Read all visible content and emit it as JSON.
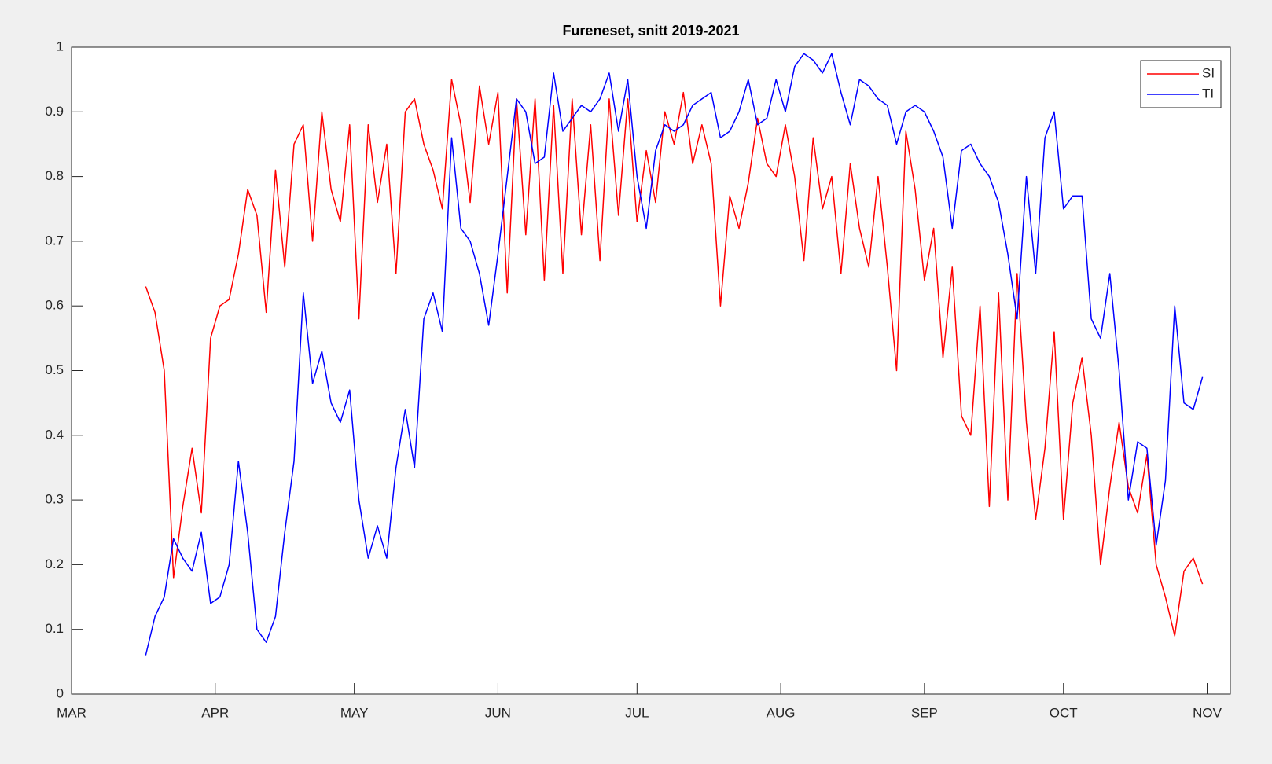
{
  "chart_data": {
    "type": "line",
    "title": "Fureneset, snitt 2019-2021",
    "x": [
      16,
      18,
      20,
      22,
      24,
      26,
      28,
      30,
      32,
      34,
      36,
      38,
      40,
      42,
      44,
      46,
      48,
      50,
      52,
      54,
      56,
      58,
      60,
      62,
      64,
      66,
      68,
      70,
      72,
      74,
      76,
      78,
      80,
      82,
      84,
      86,
      88,
      90,
      92,
      94,
      96,
      98,
      100,
      102,
      104,
      106,
      108,
      110,
      112,
      114,
      116,
      118,
      120,
      122,
      124,
      126,
      128,
      130,
      132,
      134,
      136,
      138,
      140,
      142,
      144,
      146,
      148,
      150,
      152,
      154,
      156,
      158,
      160,
      162,
      164,
      166,
      168,
      170,
      172,
      174,
      176,
      178,
      180,
      182,
      184,
      186,
      188,
      190,
      192,
      194,
      196,
      198,
      200,
      202,
      204,
      206,
      208,
      210,
      212,
      214,
      216,
      218,
      220,
      222,
      224,
      226,
      228,
      230,
      232,
      234,
      236,
      238,
      240,
      242,
      244
    ],
    "series": [
      {
        "name": "SI",
        "color": "#ff0000",
        "values": [
          0.63,
          0.59,
          0.5,
          0.18,
          0.29,
          0.38,
          0.28,
          0.55,
          0.6,
          0.61,
          0.68,
          0.78,
          0.74,
          0.59,
          0.81,
          0.66,
          0.85,
          0.88,
          0.7,
          0.9,
          0.78,
          0.73,
          0.88,
          0.58,
          0.88,
          0.76,
          0.85,
          0.65,
          0.9,
          0.92,
          0.85,
          0.81,
          0.75,
          0.95,
          0.88,
          0.76,
          0.94,
          0.85,
          0.93,
          0.62,
          0.92,
          0.71,
          0.92,
          0.64,
          0.91,
          0.65,
          0.92,
          0.71,
          0.88,
          0.67,
          0.92,
          0.74,
          0.92,
          0.73,
          0.84,
          0.76,
          0.9,
          0.85,
          0.93,
          0.82,
          0.88,
          0.82,
          0.6,
          0.77,
          0.72,
          0.79,
          0.89,
          0.82,
          0.8,
          0.88,
          0.8,
          0.67,
          0.86,
          0.75,
          0.8,
          0.65,
          0.82,
          0.72,
          0.66,
          0.8,
          0.66,
          0.5,
          0.87,
          0.78,
          0.64,
          0.72,
          0.52,
          0.66,
          0.43,
          0.4,
          0.6,
          0.29,
          0.62,
          0.3,
          0.65,
          0.42,
          0.27,
          0.38,
          0.56,
          0.27,
          0.45,
          0.52,
          0.4,
          0.2,
          0.32,
          0.42,
          0.32,
          0.28,
          0.37,
          0.2,
          0.15,
          0.09,
          0.19,
          0.21,
          0.17
        ]
      },
      {
        "name": "TI",
        "color": "#0000ff",
        "values": [
          0.06,
          0.12,
          0.15,
          0.24,
          0.21,
          0.19,
          0.25,
          0.14,
          0.15,
          0.2,
          0.36,
          0.25,
          0.1,
          0.08,
          0.12,
          0.25,
          0.36,
          0.62,
          0.48,
          0.53,
          0.45,
          0.42,
          0.47,
          0.3,
          0.21,
          0.26,
          0.21,
          0.35,
          0.44,
          0.35,
          0.58,
          0.62,
          0.56,
          0.86,
          0.72,
          0.7,
          0.65,
          0.57,
          0.68,
          0.8,
          0.92,
          0.9,
          0.82,
          0.83,
          0.96,
          0.87,
          0.89,
          0.91,
          0.9,
          0.92,
          0.96,
          0.87,
          0.95,
          0.8,
          0.72,
          0.84,
          0.88,
          0.87,
          0.88,
          0.91,
          0.92,
          0.93,
          0.86,
          0.87,
          0.9,
          0.95,
          0.88,
          0.89,
          0.95,
          0.9,
          0.97,
          0.99,
          0.98,
          0.96,
          0.99,
          0.93,
          0.88,
          0.95,
          0.94,
          0.92,
          0.91,
          0.85,
          0.9,
          0.91,
          0.9,
          0.87,
          0.83,
          0.72,
          0.84,
          0.85,
          0.82,
          0.8,
          0.76,
          0.68,
          0.58,
          0.8,
          0.65,
          0.86,
          0.9,
          0.75,
          0.77,
          0.77,
          0.58,
          0.55,
          0.65,
          0.5,
          0.3,
          0.39,
          0.38,
          0.23,
          0.33,
          0.6,
          0.45,
          0.44,
          0.49
        ]
      }
    ],
    "xlim": [
      0,
      250
    ],
    "xticks": [
      {
        "value": 0,
        "label": "MAR"
      },
      {
        "value": 31,
        "label": "APR"
      },
      {
        "value": 61,
        "label": "MAY"
      },
      {
        "value": 92,
        "label": "JUN"
      },
      {
        "value": 122,
        "label": "JUL"
      },
      {
        "value": 153,
        "label": "AUG"
      },
      {
        "value": 184,
        "label": "SEP"
      },
      {
        "value": 214,
        "label": "OCT"
      },
      {
        "value": 245,
        "label": "NOV"
      }
    ],
    "ylim": [
      0,
      1
    ],
    "yticks": [
      0,
      0.1,
      0.2,
      0.3,
      0.4,
      0.5,
      0.6,
      0.7,
      0.8,
      0.9,
      1
    ],
    "grid": false,
    "legend": "northeast"
  }
}
